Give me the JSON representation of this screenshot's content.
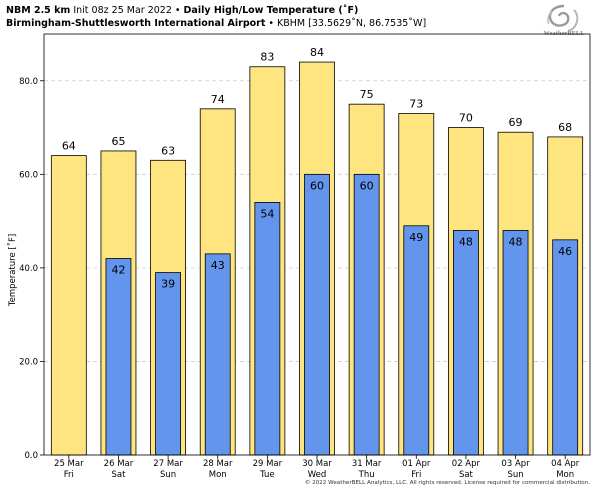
{
  "header": {
    "model": "NBM 2.5 km",
    "init": "Init 08z 25 Mar 2022",
    "bullet": "•",
    "title": "Daily High/Low Temperature (˚F)",
    "station": "Birmingham-Shuttlesworth International Airport",
    "station_meta": "• KBHM [33.5629˚N, 86.7535˚W]"
  },
  "logo": {
    "brand": "WeatherBELL",
    "icon": "weatherbell-swirl-logo"
  },
  "copyright": "© 2022 WeatherBELL Analytics, LLC. All rights reserved. License required for commercial distribution.",
  "colors": {
    "high": "#FFE57F",
    "low": "#6495ED",
    "outline": "#000000",
    "grid": "#CCCCCC"
  },
  "chart_data": {
    "type": "bar",
    "title": "Daily High/Low Temperature (˚F)",
    "ylabel": "Temperature [˚F]",
    "xlabel": "",
    "ylim": [
      0,
      90
    ],
    "yticks": [
      "0.0",
      "20.0",
      "40.0",
      "60.0",
      "80.0"
    ],
    "ytick_values": [
      0,
      20,
      40,
      60,
      80
    ],
    "grid": "horizontal dashed",
    "categories": [
      {
        "date": "25 Mar",
        "day": "Fri"
      },
      {
        "date": "26 Mar",
        "day": "Sat"
      },
      {
        "date": "27 Mar",
        "day": "Sun"
      },
      {
        "date": "28 Mar",
        "day": "Mon"
      },
      {
        "date": "29 Mar",
        "day": "Tue"
      },
      {
        "date": "30 Mar",
        "day": "Wed"
      },
      {
        "date": "31 Mar",
        "day": "Thu"
      },
      {
        "date": "01 Apr",
        "day": "Fri"
      },
      {
        "date": "02 Apr",
        "day": "Sat"
      },
      {
        "date": "03 Apr",
        "day": "Sun"
      },
      {
        "date": "04 Apr",
        "day": "Mon"
      }
    ],
    "series": [
      {
        "key": "high",
        "values": [
          64,
          65,
          63,
          74,
          83,
          84,
          75,
          73,
          70,
          69,
          68
        ]
      },
      {
        "key": "low",
        "values": [
          null,
          42,
          39,
          43,
          54,
          60,
          60,
          49,
          48,
          48,
          46
        ]
      }
    ]
  }
}
